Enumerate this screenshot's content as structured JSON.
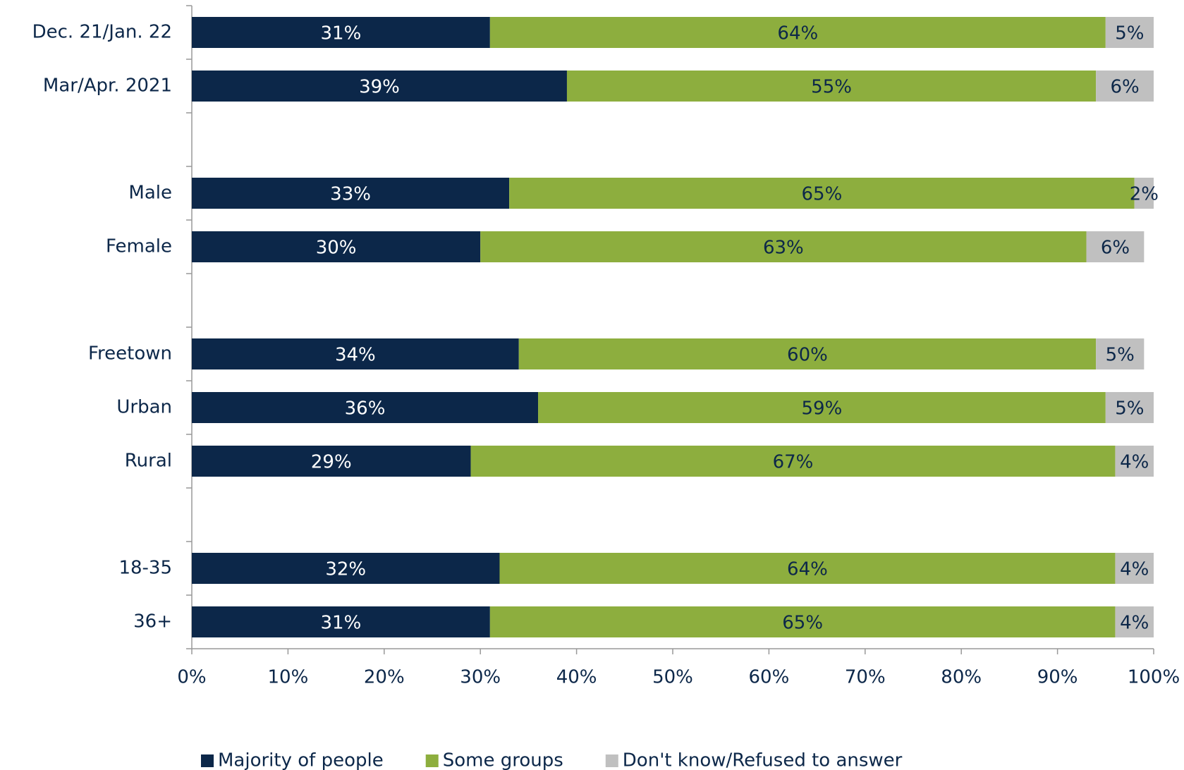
{
  "chart_data": {
    "type": "stacked-barh",
    "categories": [
      "Dec. 21/Jan. 22",
      "Mar/Apr. 2021",
      null,
      "Male",
      "Female",
      null,
      "Freetown",
      "Urban",
      "Rural",
      null,
      "18-35",
      "36+"
    ],
    "series": [
      {
        "name": "Majority of people",
        "color": "#0c2749",
        "label_color": "#ffffff",
        "values": [
          31,
          39,
          null,
          33,
          30,
          null,
          34,
          36,
          29,
          null,
          32,
          31
        ],
        "value_labels": [
          "31%",
          "39%",
          null,
          "33%",
          "30%",
          null,
          "34%",
          "36%",
          "29%",
          null,
          "32%",
          "31%"
        ]
      },
      {
        "name": "Some groups",
        "color": "#8dae3e",
        "label_color": "#0c2749",
        "values": [
          64,
          55,
          null,
          65,
          63,
          null,
          60,
          59,
          67,
          null,
          64,
          65
        ],
        "value_labels": [
          "64%",
          "55%",
          null,
          "65%",
          "63%",
          null,
          "60%",
          "59%",
          "67%",
          null,
          "64%",
          "65%"
        ]
      },
      {
        "name": "Don't know/Refused to answer",
        "color": "#c0c0c0",
        "label_color": "#0c2749",
        "values": [
          5,
          6,
          null,
          2,
          6,
          null,
          5,
          5,
          4,
          null,
          4,
          4
        ],
        "value_labels": [
          "5%",
          "6%",
          null,
          "2%",
          "6%",
          null,
          "5%",
          "5%",
          "4%",
          null,
          "4%",
          "4%"
        ]
      }
    ],
    "xlim": [
      0,
      100
    ],
    "xticks": [
      {
        "value": 0,
        "label": "0%"
      },
      {
        "value": 10,
        "label": "10%"
      },
      {
        "value": 20,
        "label": "20%"
      },
      {
        "value": 30,
        "label": "30%"
      },
      {
        "value": 40,
        "label": "40%"
      },
      {
        "value": 50,
        "label": "50%"
      },
      {
        "value": 60,
        "label": "60%"
      },
      {
        "value": 70,
        "label": "70%"
      },
      {
        "value": 80,
        "label": "80%"
      },
      {
        "value": 90,
        "label": "90%"
      },
      {
        "value": 100,
        "label": "100%"
      }
    ],
    "legend": "bottom"
  }
}
